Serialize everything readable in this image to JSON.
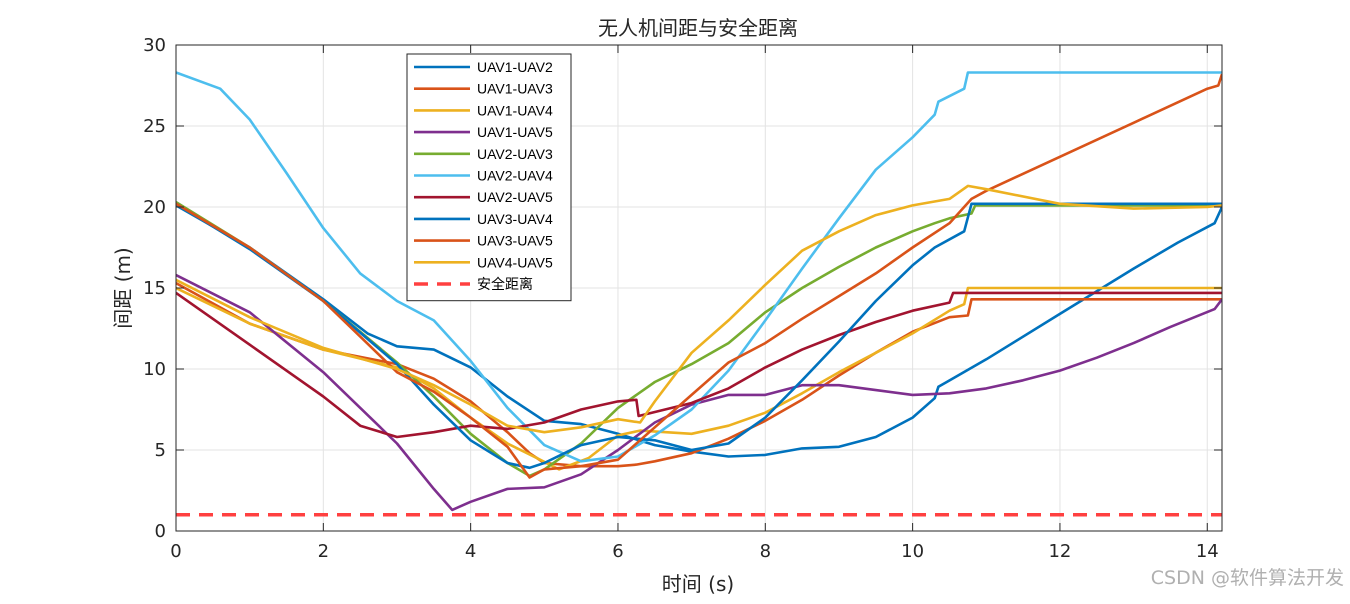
{
  "chart_data": {
    "type": "line",
    "title": "无人机间距与安全距离",
    "xlabel": "时间 (s)",
    "ylabel": "间距 (m)",
    "xlim": [
      0,
      14.2
    ],
    "ylim": [
      0,
      30
    ],
    "xticks": [
      0,
      2,
      4,
      6,
      8,
      10,
      12,
      14
    ],
    "yticks": [
      0,
      5,
      10,
      15,
      20,
      25,
      30
    ],
    "grid": true,
    "legend_position": "top-left-inside",
    "series": [
      {
        "name": "UAV1-UAV2",
        "color": "#0072BD",
        "points": [
          [
            0,
            20.1
          ],
          [
            1,
            17.5
          ],
          [
            2,
            14.3
          ],
          [
            2.6,
            12.2
          ],
          [
            3,
            11.4
          ],
          [
            3.5,
            11.2
          ],
          [
            4,
            10.1
          ],
          [
            4.5,
            8.3
          ],
          [
            5,
            6.8
          ],
          [
            5.5,
            6.6
          ],
          [
            6,
            6.0
          ],
          [
            6.5,
            5.3
          ],
          [
            7,
            4.9
          ],
          [
            7.5,
            4.6
          ],
          [
            8,
            4.7
          ],
          [
            8.5,
            5.1
          ],
          [
            9,
            5.2
          ],
          [
            9.5,
            5.8
          ],
          [
            10,
            7.0
          ],
          [
            10.3,
            8.2
          ],
          [
            10.35,
            8.9
          ],
          [
            11,
            10.6
          ],
          [
            12,
            13.4
          ],
          [
            13,
            16.2
          ],
          [
            13.6,
            17.8
          ],
          [
            14.1,
            19.0
          ],
          [
            14.2,
            20.0
          ]
        ]
      },
      {
        "name": "UAV1-UAV3",
        "color": "#D95319",
        "points": [
          [
            0,
            15.3
          ],
          [
            1,
            12.8
          ],
          [
            2,
            11.2
          ],
          [
            3,
            10.3
          ],
          [
            3.5,
            9.4
          ],
          [
            4,
            8.0
          ],
          [
            4.5,
            6.1
          ],
          [
            4.8,
            4.8
          ],
          [
            5,
            4.2
          ],
          [
            5.5,
            4.0
          ],
          [
            6,
            4.0
          ],
          [
            6.25,
            4.1
          ],
          [
            6.5,
            4.3
          ],
          [
            7,
            4.8
          ],
          [
            7.5,
            5.7
          ],
          [
            8,
            6.8
          ],
          [
            8.5,
            8.1
          ],
          [
            9,
            9.6
          ],
          [
            9.5,
            11.0
          ],
          [
            10,
            12.3
          ],
          [
            10.5,
            13.2
          ],
          [
            10.75,
            13.3
          ],
          [
            10.8,
            14.3
          ],
          [
            14.2,
            14.3
          ]
        ]
      },
      {
        "name": "UAV1-UAV4",
        "color": "#EDB120",
        "points": [
          [
            0,
            15.0
          ],
          [
            1,
            12.8
          ],
          [
            2,
            11.2
          ],
          [
            3,
            10.1
          ],
          [
            3.5,
            8.8
          ],
          [
            4,
            7.0
          ],
          [
            4.5,
            5.4
          ],
          [
            4.9,
            4.5
          ],
          [
            5.2,
            3.8
          ],
          [
            5.6,
            4.5
          ],
          [
            6,
            5.9
          ],
          [
            6.3,
            6.2
          ],
          [
            7,
            6.0
          ],
          [
            7.5,
            6.5
          ],
          [
            8,
            7.3
          ],
          [
            8.5,
            8.5
          ],
          [
            9,
            9.8
          ],
          [
            9.5,
            11.0
          ],
          [
            10,
            12.2
          ],
          [
            10.5,
            13.6
          ],
          [
            10.7,
            14.0
          ],
          [
            10.75,
            15.0
          ],
          [
            14.2,
            15.0
          ]
        ]
      },
      {
        "name": "UAV1-UAV5",
        "color": "#7E2F8E",
        "points": [
          [
            0,
            15.8
          ],
          [
            1,
            13.5
          ],
          [
            2,
            9.8
          ],
          [
            3,
            5.4
          ],
          [
            3.5,
            2.6
          ],
          [
            3.75,
            1.3
          ],
          [
            4,
            1.8
          ],
          [
            4.5,
            2.6
          ],
          [
            5,
            2.7
          ],
          [
            5.5,
            3.5
          ],
          [
            6,
            5.0
          ],
          [
            6.5,
            6.7
          ],
          [
            7,
            7.8
          ],
          [
            7.5,
            8.4
          ],
          [
            8,
            8.4
          ],
          [
            8.5,
            9.0
          ],
          [
            9,
            9.0
          ],
          [
            9.5,
            8.7
          ],
          [
            10,
            8.4
          ],
          [
            10.5,
            8.5
          ],
          [
            11,
            8.8
          ],
          [
            11.5,
            9.3
          ],
          [
            12,
            9.9
          ],
          [
            12.5,
            10.7
          ],
          [
            13,
            11.6
          ],
          [
            13.5,
            12.6
          ],
          [
            14.1,
            13.7
          ],
          [
            14.2,
            14.3
          ]
        ]
      },
      {
        "name": "UAV2-UAV3",
        "color": "#77AC30",
        "points": [
          [
            0,
            20.3
          ],
          [
            1,
            17.5
          ],
          [
            2,
            14.2
          ],
          [
            3,
            10.4
          ],
          [
            3.5,
            8.3
          ],
          [
            4,
            6.0
          ],
          [
            4.5,
            4.2
          ],
          [
            4.8,
            3.4
          ],
          [
            5,
            3.8
          ],
          [
            5.5,
            5.4
          ],
          [
            6,
            7.6
          ],
          [
            6.5,
            9.2
          ],
          [
            7,
            10.3
          ],
          [
            7.5,
            11.6
          ],
          [
            8,
            13.5
          ],
          [
            8.5,
            15.0
          ],
          [
            9,
            16.3
          ],
          [
            9.5,
            17.5
          ],
          [
            10,
            18.5
          ],
          [
            10.3,
            19.0
          ],
          [
            10.5,
            19.3
          ],
          [
            10.8,
            19.6
          ],
          [
            10.85,
            20.1
          ],
          [
            14.2,
            20.1
          ]
        ]
      },
      {
        "name": "UAV2-UAV4",
        "color": "#4DBEEE",
        "points": [
          [
            0,
            28.3
          ],
          [
            0.6,
            27.3
          ],
          [
            1,
            25.4
          ],
          [
            1.5,
            22.1
          ],
          [
            2,
            18.7
          ],
          [
            2.5,
            15.9
          ],
          [
            3,
            14.2
          ],
          [
            3.5,
            13.0
          ],
          [
            4,
            10.5
          ],
          [
            4.5,
            7.6
          ],
          [
            5,
            5.3
          ],
          [
            5.5,
            4.3
          ],
          [
            6,
            4.6
          ],
          [
            6.5,
            5.9
          ],
          [
            7,
            7.5
          ],
          [
            7.5,
            9.9
          ],
          [
            8,
            13.0
          ],
          [
            8.5,
            16.2
          ],
          [
            9,
            19.3
          ],
          [
            9.5,
            22.3
          ],
          [
            10,
            24.3
          ],
          [
            10.3,
            25.7
          ],
          [
            10.35,
            26.5
          ],
          [
            10.7,
            27.3
          ],
          [
            10.75,
            28.3
          ],
          [
            14.2,
            28.3
          ]
        ]
      },
      {
        "name": "UAV2-UAV5",
        "color": "#A2142F",
        "points": [
          [
            0,
            14.7
          ],
          [
            1,
            11.5
          ],
          [
            2,
            8.3
          ],
          [
            2.5,
            6.5
          ],
          [
            3,
            5.8
          ],
          [
            3.5,
            6.1
          ],
          [
            4,
            6.5
          ],
          [
            4.5,
            6.3
          ],
          [
            5,
            6.7
          ],
          [
            5.5,
            7.5
          ],
          [
            6,
            8.0
          ],
          [
            6.25,
            8.1
          ],
          [
            6.28,
            7.1
          ],
          [
            7,
            7.9
          ],
          [
            7.5,
            8.8
          ],
          [
            8,
            10.1
          ],
          [
            8.5,
            11.2
          ],
          [
            9,
            12.1
          ],
          [
            9.5,
            12.9
          ],
          [
            10,
            13.6
          ],
          [
            10.5,
            14.1
          ],
          [
            10.55,
            14.7
          ],
          [
            14.2,
            14.7
          ]
        ]
      },
      {
        "name": "UAV3-UAV4",
        "color": "#0072BD",
        "points": [
          [
            0,
            20.2
          ],
          [
            1,
            17.4
          ],
          [
            2,
            14.2
          ],
          [
            3,
            10.3
          ],
          [
            3.5,
            7.8
          ],
          [
            4,
            5.6
          ],
          [
            4.5,
            4.2
          ],
          [
            4.8,
            3.9
          ],
          [
            5,
            4.2
          ],
          [
            5.5,
            5.3
          ],
          [
            6,
            5.8
          ],
          [
            6.5,
            5.6
          ],
          [
            7,
            5.0
          ],
          [
            7.5,
            5.4
          ],
          [
            8,
            7.0
          ],
          [
            8.5,
            9.3
          ],
          [
            9,
            11.7
          ],
          [
            9.5,
            14.2
          ],
          [
            10,
            16.4
          ],
          [
            10.3,
            17.5
          ],
          [
            10.7,
            18.5
          ],
          [
            10.8,
            20.2
          ],
          [
            14.2,
            20.2
          ]
        ]
      },
      {
        "name": "UAV3-UAV5",
        "color": "#D95319",
        "points": [
          [
            0,
            20.2
          ],
          [
            1,
            17.5
          ],
          [
            2,
            14.2
          ],
          [
            2.5,
            12.0
          ],
          [
            3,
            9.8
          ],
          [
            3.5,
            8.6
          ],
          [
            4,
            7.0
          ],
          [
            4.5,
            5.2
          ],
          [
            4.8,
            3.3
          ],
          [
            5,
            3.8
          ],
          [
            5.5,
            4.0
          ],
          [
            6,
            4.4
          ],
          [
            6.5,
            6.4
          ],
          [
            7,
            8.4
          ],
          [
            7.5,
            10.4
          ],
          [
            8,
            11.6
          ],
          [
            8.5,
            13.1
          ],
          [
            9,
            14.5
          ],
          [
            9.5,
            15.9
          ],
          [
            10,
            17.5
          ],
          [
            10.5,
            19.0
          ],
          [
            10.8,
            20.5
          ],
          [
            11,
            21.0
          ],
          [
            12,
            23.1
          ],
          [
            13,
            25.2
          ],
          [
            14,
            27.3
          ],
          [
            14.15,
            27.5
          ],
          [
            14.2,
            28.2
          ]
        ]
      },
      {
        "name": "UAV4-UAV5",
        "color": "#EDB120",
        "points": [
          [
            0,
            15.5
          ],
          [
            1,
            13.2
          ],
          [
            2,
            11.3
          ],
          [
            3,
            10.0
          ],
          [
            3.5,
            9.0
          ],
          [
            4,
            7.8
          ],
          [
            4.5,
            6.5
          ],
          [
            5,
            6.1
          ],
          [
            5.5,
            6.4
          ],
          [
            6,
            6.9
          ],
          [
            6.3,
            6.7
          ],
          [
            6.5,
            8.0
          ],
          [
            7,
            11.0
          ],
          [
            7.5,
            13.0
          ],
          [
            8,
            15.2
          ],
          [
            8.5,
            17.3
          ],
          [
            9,
            18.5
          ],
          [
            9.5,
            19.5
          ],
          [
            10,
            20.1
          ],
          [
            10.5,
            20.5
          ],
          [
            10.75,
            21.3
          ],
          [
            11,
            21.1
          ],
          [
            12,
            20.2
          ],
          [
            13,
            19.9
          ],
          [
            14,
            20.0
          ],
          [
            14.2,
            20.1
          ]
        ]
      },
      {
        "name": "安全距离",
        "color": "#FF4040",
        "dashed": true,
        "points": [
          [
            0,
            1.0
          ],
          [
            14.2,
            1.0
          ]
        ]
      }
    ]
  },
  "watermark": "CSDN @软件算法开发"
}
